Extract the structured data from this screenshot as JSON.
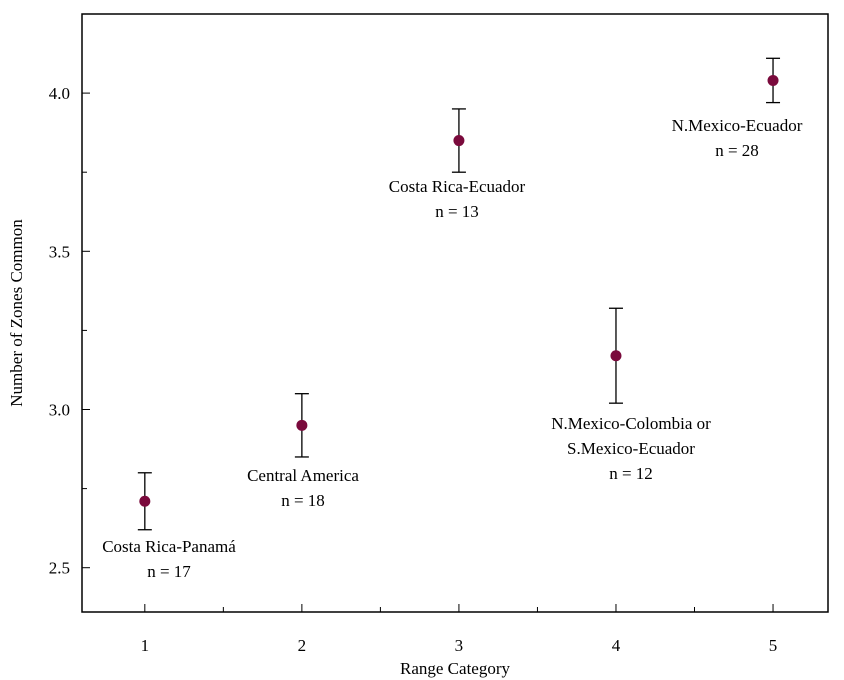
{
  "chart_data": {
    "type": "scatter",
    "title": "",
    "xlabel": "Range Category",
    "ylabel": "Number of Zones Common",
    "xlim": [
      0.6,
      5.35
    ],
    "ylim": [
      2.36,
      4.25
    ],
    "grid": false,
    "x_ticks": [
      1,
      2,
      3,
      4,
      5
    ],
    "y_ticks": [
      2.5,
      3.0,
      3.5,
      4.0
    ],
    "x_tick_labels": [
      "1",
      "2",
      "3",
      "4",
      "5"
    ],
    "y_tick_labels": [
      "2.5",
      "3.0",
      "3.5",
      "4.0"
    ],
    "marker_color": "#7a0a3c",
    "points": [
      {
        "x": 1,
        "y": 2.71,
        "err_low": 2.62,
        "err_high": 2.8,
        "label_lines": [
          "Costa Rica-Panamá",
          "n = 17"
        ]
      },
      {
        "x": 2,
        "y": 2.95,
        "err_low": 2.85,
        "err_high": 3.05,
        "label_lines": [
          "Central America",
          "n = 18"
        ]
      },
      {
        "x": 3,
        "y": 3.85,
        "err_low": 3.75,
        "err_high": 3.95,
        "label_lines": [
          "Costa Rica-Ecuador",
          "n = 13"
        ]
      },
      {
        "x": 4,
        "y": 3.17,
        "err_low": 3.02,
        "err_high": 3.32,
        "label_lines": [
          "N.Mexico-Colombia or",
          "S.Mexico-Ecuador",
          "n = 12"
        ]
      },
      {
        "x": 5,
        "y": 4.04,
        "err_low": 3.97,
        "err_high": 4.11,
        "label_lines": [
          "N.Mexico-Ecuador",
          "n = 28"
        ]
      }
    ]
  }
}
